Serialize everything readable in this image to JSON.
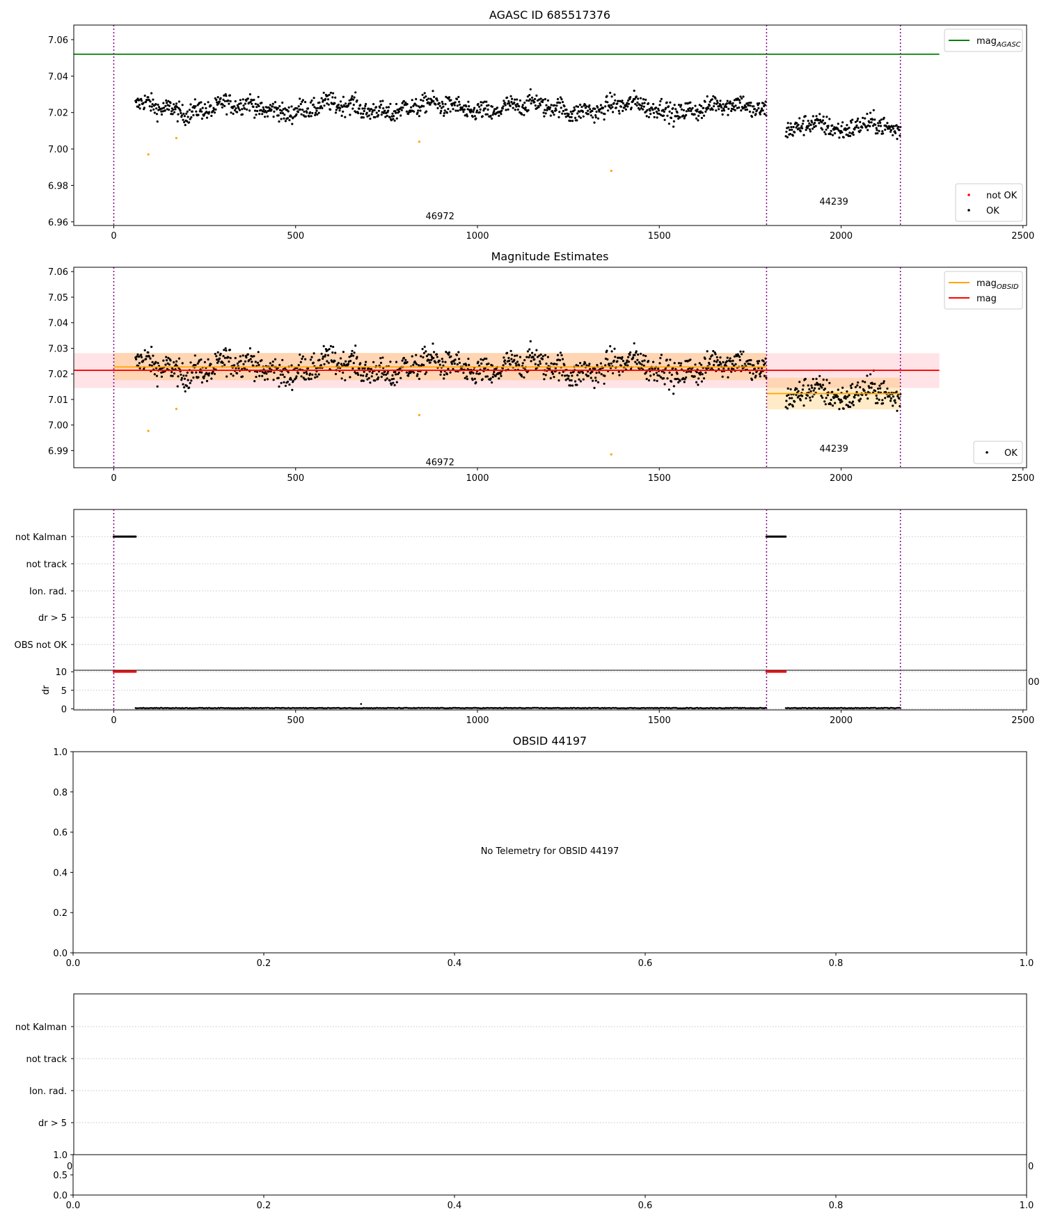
{
  "chart_data": [
    {
      "type": "scatter",
      "title": "AGASC ID 685517376",
      "xlim": [
        -110,
        2510
      ],
      "ylim": [
        6.958,
        7.068
      ],
      "x_ticks": [
        0,
        500,
        1000,
        1500,
        2000,
        2500
      ],
      "y_ticks": [
        6.96,
        6.98,
        7.0,
        7.02,
        7.04,
        7.06
      ],
      "y_tick_labels": [
        "6.96",
        "6.98",
        "7.00",
        "7.02",
        "7.04",
        "7.06"
      ],
      "vlines": [
        0,
        1795,
        2163
      ],
      "segment_labels": [
        {
          "text": "46972",
          "x": 897,
          "y": 6.963
        },
        {
          "text": "44239",
          "x": 1980,
          "y": 6.971
        }
      ],
      "lines": [
        {
          "name": "mag",
          "sub": "AGASC",
          "color": "#008000",
          "x": [
            -110,
            2270
          ],
          "y": [
            7.052,
            7.052
          ]
        }
      ],
      "outliers": {
        "color": "#ffa500",
        "points": [
          [
            95,
            6.997
          ],
          [
            172,
            7.006
          ],
          [
            840,
            7.004
          ],
          [
            1368,
            6.988
          ]
        ]
      },
      "legends": [
        {
          "position": "top-right",
          "items": [
            {
              "kind": "line",
              "label": "mag",
              "sub": "AGASC",
              "color": "#008000"
            }
          ]
        },
        {
          "position": "lower-right",
          "items": [
            {
              "kind": "dot",
              "label": "not OK",
              "color": "#ff0000"
            },
            {
              "kind": "dot",
              "label": "OK",
              "color": "#000000"
            }
          ]
        }
      ]
    },
    {
      "type": "scatter",
      "title": "Magnitude Estimates",
      "xlim": [
        -110,
        2510
      ],
      "ylim": [
        6.9833,
        7.0617
      ],
      "x_ticks": [
        0,
        500,
        1000,
        1500,
        2000,
        2500
      ],
      "y_ticks": [
        6.99,
        7.0,
        7.01,
        7.02,
        7.03,
        7.04,
        7.05,
        7.06
      ],
      "y_tick_labels": [
        "6.99",
        "7.00",
        "7.01",
        "7.02",
        "7.03",
        "7.04",
        "7.05",
        "7.06"
      ],
      "vlines": [
        0,
        1795,
        2163
      ],
      "segment_labels": [
        {
          "text": "46972",
          "x": 897,
          "y": 6.9853
        },
        {
          "text": "44239",
          "x": 1980,
          "y": 6.9907
        }
      ],
      "bands": [
        {
          "color": "#ff9aa8",
          "opacity": 0.28,
          "x": [
            -110,
            2270
          ],
          "y": [
            7.0145,
            7.0281
          ]
        },
        {
          "color": "#ffa500",
          "opacity": 0.22,
          "x": [
            0,
            1795
          ],
          "y": [
            7.0175,
            7.0282
          ]
        },
        {
          "color": "#ffa500",
          "opacity": 0.22,
          "x": [
            1795,
            2163
          ],
          "y": [
            7.0061,
            7.0185
          ]
        }
      ],
      "lines": [
        {
          "name": "mag",
          "sub": "OBSID",
          "color": "#ffa500",
          "x": [
            0,
            1795
          ],
          "y": [
            7.0227,
            7.0227
          ]
        },
        {
          "name": "mag",
          "sub": "OBSID",
          "color": "#ffa500",
          "x": [
            1795,
            2163
          ],
          "y": [
            7.0123,
            7.0123
          ]
        },
        {
          "name": "mag",
          "color": "#ff0000",
          "x": [
            -110,
            2270
          ],
          "y": [
            7.0214,
            7.0214
          ]
        }
      ],
      "outliers": {
        "color": "#ffa500",
        "points": [
          [
            95,
            6.9977
          ],
          [
            172,
            7.0063
          ],
          [
            840,
            7.0039
          ],
          [
            1368,
            6.9885
          ]
        ]
      },
      "legends": [
        {
          "position": "top-right",
          "items": [
            {
              "kind": "line",
              "label": "mag",
              "sub": "OBSID",
              "color": "#ffa500"
            },
            {
              "kind": "line",
              "label": "mag",
              "color": "#ff0000"
            }
          ]
        },
        {
          "position": "lower-right",
          "items": [
            {
              "kind": "dot",
              "label": "OK",
              "color": "#000000"
            }
          ]
        }
      ]
    },
    {
      "type": "scatter",
      "title": "",
      "xlim": [
        -110,
        2510
      ],
      "categories": [
        "not Kalman",
        "not track",
        "Ion. rad.",
        "dr > 5",
        "OBS not OK"
      ],
      "flag_runs": [
        {
          "category": "not Kalman",
          "x0": 0,
          "x1": 60
        },
        {
          "category": "not Kalman",
          "x0": 1795,
          "x1": 1848
        }
      ],
      "vlines": [
        0,
        1795,
        2163
      ],
      "dr": {
        "ylabel": "dr",
        "ylim": [
          -0.3,
          10.4
        ],
        "y_ticks": [
          0,
          5,
          10
        ],
        "flagged_runs": [
          {
            "x0": 0,
            "x1": 60,
            "y": 10
          },
          {
            "x0": 1795,
            "x1": 1848,
            "y": 10
          }
        ],
        "segments": [
          [
            60,
            1795
          ],
          [
            1848,
            2163
          ]
        ],
        "typical": 0.2,
        "spike": [
          680,
          1.3
        ]
      },
      "x_ticks": [
        0,
        500,
        1000,
        1500,
        2000,
        2500
      ],
      "overlap_tick_fragment": "00"
    },
    {
      "type": "scatter",
      "title": "OBSID 44197",
      "xlim": [
        0,
        1
      ],
      "ylim": [
        0,
        1
      ],
      "x_ticks": [
        "0.0",
        "0.2",
        "0.4",
        "0.6",
        "0.8",
        "1.0"
      ],
      "y_ticks": [
        "0.0",
        "0.2",
        "0.4",
        "0.6",
        "0.8",
        "1.0"
      ],
      "message": "No Telemetry for OBSID 44197"
    },
    {
      "type": "scatter",
      "title": "",
      "categories": [
        "not Kalman",
        "not track",
        "Ion. rad.",
        "dr > 5"
      ],
      "overlap_tick_fragments": [
        "0.",
        "0"
      ],
      "sub": {
        "xlim": [
          0,
          1
        ],
        "ylim": [
          0,
          1
        ],
        "x_ticks": [
          "0.0",
          "0.2",
          "0.4",
          "0.6",
          "0.8",
          "1.0"
        ],
        "y_ticks": [
          "0.0",
          "0.5",
          "1.0"
        ]
      }
    }
  ]
}
